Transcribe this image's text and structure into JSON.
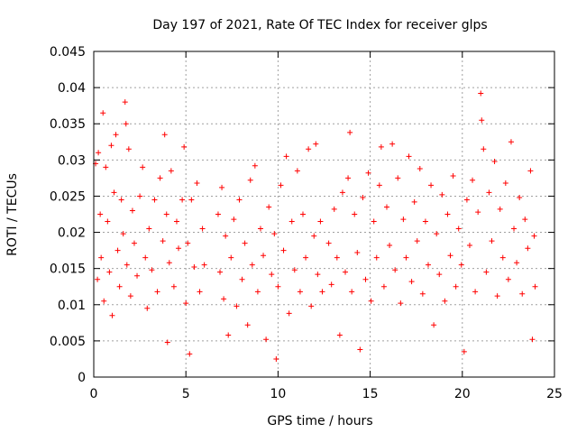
{
  "chart_data": {
    "type": "scatter",
    "title": "Day 197 of 2021, Rate Of TEC Index for receiver glps",
    "xlabel": "GPS time / hours",
    "ylabel": "ROTI / TECUs",
    "xlim": [
      0,
      25
    ],
    "ylim": [
      0,
      0.045
    ],
    "xticks": [
      0,
      5,
      10,
      15,
      20,
      25
    ],
    "xtick_labels": [
      "0",
      "5",
      "10",
      "15",
      "20",
      "25"
    ],
    "yticks": [
      0,
      0.005,
      0.01,
      0.015,
      0.02,
      0.025,
      0.03,
      0.035,
      0.04,
      0.045
    ],
    "ytick_labels": [
      "0",
      "0.005",
      "0.01",
      "0.015",
      "0.02",
      "0.025",
      "0.03",
      "0.035",
      "0.04",
      "0.045"
    ],
    "grid": true,
    "marker": "+",
    "color": "#ff0000",
    "series": [
      {
        "name": "ROTI",
        "points": [
          [
            0.1,
            0.0295
          ],
          [
            0.2,
            0.0135
          ],
          [
            0.25,
            0.031
          ],
          [
            0.35,
            0.0225
          ],
          [
            0.4,
            0.0165
          ],
          [
            0.5,
            0.0365
          ],
          [
            0.55,
            0.0105
          ],
          [
            0.65,
            0.029
          ],
          [
            0.75,
            0.0215
          ],
          [
            0.85,
            0.0145
          ],
          [
            0.95,
            0.032
          ],
          [
            1.0,
            0.0085
          ],
          [
            1.1,
            0.0255
          ],
          [
            1.2,
            0.0335
          ],
          [
            1.3,
            0.0175
          ],
          [
            1.4,
            0.0125
          ],
          [
            1.5,
            0.0245
          ],
          [
            1.6,
            0.0198
          ],
          [
            1.7,
            0.038
          ],
          [
            1.75,
            0.035
          ],
          [
            1.8,
            0.0155
          ],
          [
            1.9,
            0.0315
          ],
          [
            2.0,
            0.0112
          ],
          [
            2.1,
            0.023
          ],
          [
            2.2,
            0.0185
          ],
          [
            2.35,
            0.014
          ],
          [
            2.5,
            0.025
          ],
          [
            2.65,
            0.029
          ],
          [
            2.8,
            0.0165
          ],
          [
            2.9,
            0.0095
          ],
          [
            3.0,
            0.0205
          ],
          [
            3.15,
            0.0148
          ],
          [
            3.3,
            0.0245
          ],
          [
            3.45,
            0.0118
          ],
          [
            3.6,
            0.0275
          ],
          [
            3.75,
            0.0188
          ],
          [
            3.85,
            0.0335
          ],
          [
            3.95,
            0.0225
          ],
          [
            4.0,
            0.0048
          ],
          [
            4.1,
            0.0158
          ],
          [
            4.2,
            0.0285
          ],
          [
            4.35,
            0.0125
          ],
          [
            4.5,
            0.0215
          ],
          [
            4.6,
            0.0178
          ],
          [
            4.8,
            0.0245
          ],
          [
            4.9,
            0.0318
          ],
          [
            5.0,
            0.0102
          ],
          [
            5.1,
            0.0185
          ],
          [
            5.2,
            0.0032
          ],
          [
            5.3,
            0.0245
          ],
          [
            5.45,
            0.0152
          ],
          [
            5.6,
            0.0268
          ],
          [
            5.75,
            0.0118
          ],
          [
            5.9,
            0.0205
          ],
          [
            6.0,
            0.0155
          ],
          [
            6.75,
            0.0225
          ],
          [
            6.85,
            0.0145
          ],
          [
            6.95,
            0.0262
          ],
          [
            7.05,
            0.0108
          ],
          [
            7.15,
            0.0195
          ],
          [
            7.3,
            0.0058
          ],
          [
            7.45,
            0.0165
          ],
          [
            7.6,
            0.0218
          ],
          [
            7.75,
            0.0098
          ],
          [
            7.9,
            0.0245
          ],
          [
            8.05,
            0.0135
          ],
          [
            8.2,
            0.0185
          ],
          [
            8.35,
            0.0072
          ],
          [
            8.5,
            0.0272
          ],
          [
            8.6,
            0.0155
          ],
          [
            8.75,
            0.0292
          ],
          [
            8.9,
            0.0118
          ],
          [
            9.05,
            0.0205
          ],
          [
            9.2,
            0.0168
          ],
          [
            9.35,
            0.0052
          ],
          [
            9.5,
            0.0235
          ],
          [
            9.65,
            0.0142
          ],
          [
            9.8,
            0.0198
          ],
          [
            9.9,
            0.0025
          ],
          [
            10.0,
            0.0125
          ],
          [
            10.15,
            0.0265
          ],
          [
            10.3,
            0.0175
          ],
          [
            10.45,
            0.0305
          ],
          [
            10.6,
            0.0088
          ],
          [
            10.75,
            0.0215
          ],
          [
            10.9,
            0.0148
          ],
          [
            11.05,
            0.0285
          ],
          [
            11.2,
            0.0118
          ],
          [
            11.35,
            0.0225
          ],
          [
            11.5,
            0.0165
          ],
          [
            11.65,
            0.0315
          ],
          [
            11.8,
            0.0098
          ],
          [
            11.95,
            0.0195
          ],
          [
            12.05,
            0.0322
          ],
          [
            12.15,
            0.0142
          ],
          [
            12.3,
            0.0215
          ],
          [
            12.4,
            0.0118
          ],
          [
            12.75,
            0.0185
          ],
          [
            12.9,
            0.0128
          ],
          [
            13.05,
            0.0232
          ],
          [
            13.2,
            0.0165
          ],
          [
            13.35,
            0.0058
          ],
          [
            13.5,
            0.0255
          ],
          [
            13.65,
            0.0145
          ],
          [
            13.8,
            0.0275
          ],
          [
            13.9,
            0.0338
          ],
          [
            14.0,
            0.0118
          ],
          [
            14.15,
            0.0225
          ],
          [
            14.3,
            0.0172
          ],
          [
            14.45,
            0.0038
          ],
          [
            14.6,
            0.0248
          ],
          [
            14.75,
            0.0135
          ],
          [
            14.9,
            0.0282
          ],
          [
            15.05,
            0.0105
          ],
          [
            15.2,
            0.0215
          ],
          [
            15.35,
            0.0165
          ],
          [
            15.5,
            0.0265
          ],
          [
            15.6,
            0.0318
          ],
          [
            15.75,
            0.0125
          ],
          [
            15.9,
            0.0235
          ],
          [
            16.05,
            0.0182
          ],
          [
            16.2,
            0.0322
          ],
          [
            16.35,
            0.0148
          ],
          [
            16.5,
            0.0275
          ],
          [
            16.65,
            0.0102
          ],
          [
            16.8,
            0.0218
          ],
          [
            16.95,
            0.0165
          ],
          [
            17.1,
            0.0305
          ],
          [
            17.25,
            0.0132
          ],
          [
            17.4,
            0.0242
          ],
          [
            17.55,
            0.0188
          ],
          [
            17.7,
            0.0288
          ],
          [
            17.85,
            0.0115
          ],
          [
            18.0,
            0.0215
          ],
          [
            18.15,
            0.0155
          ],
          [
            18.3,
            0.0265
          ],
          [
            18.45,
            0.0072
          ],
          [
            18.6,
            0.0198
          ],
          [
            18.75,
            0.0142
          ],
          [
            18.9,
            0.0252
          ],
          [
            19.05,
            0.0105
          ],
          [
            19.2,
            0.0225
          ],
          [
            19.35,
            0.0168
          ],
          [
            19.5,
            0.0278
          ],
          [
            19.65,
            0.0125
          ],
          [
            19.8,
            0.0205
          ],
          [
            19.95,
            0.0155
          ],
          [
            20.1,
            0.0035
          ],
          [
            20.25,
            0.0245
          ],
          [
            20.4,
            0.0182
          ],
          [
            20.55,
            0.0272
          ],
          [
            20.7,
            0.0118
          ],
          [
            20.85,
            0.0228
          ],
          [
            21.0,
            0.0392
          ],
          [
            21.05,
            0.0355
          ],
          [
            21.15,
            0.0315
          ],
          [
            21.3,
            0.0145
          ],
          [
            21.45,
            0.0255
          ],
          [
            21.6,
            0.0188
          ],
          [
            21.75,
            0.0298
          ],
          [
            21.9,
            0.0112
          ],
          [
            22.05,
            0.0232
          ],
          [
            22.2,
            0.0165
          ],
          [
            22.35,
            0.0268
          ],
          [
            22.5,
            0.0135
          ],
          [
            22.65,
            0.0325
          ],
          [
            22.8,
            0.0205
          ],
          [
            22.95,
            0.0158
          ],
          [
            23.1,
            0.0248
          ],
          [
            23.25,
            0.0115
          ],
          [
            23.4,
            0.0218
          ],
          [
            23.55,
            0.0178
          ],
          [
            23.7,
            0.0285
          ],
          [
            23.8,
            0.0052
          ],
          [
            23.9,
            0.0195
          ],
          [
            23.95,
            0.0125
          ]
        ]
      }
    ]
  }
}
